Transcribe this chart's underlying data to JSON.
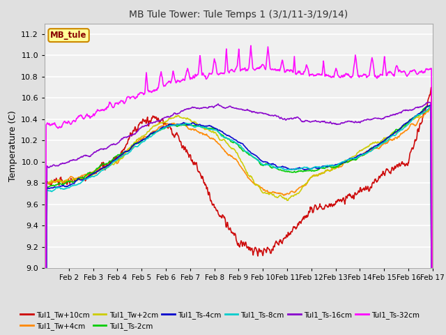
{
  "title": "MB Tule Tower: Tule Temps 1 (3/1/11-3/19/14)",
  "ylabel": "Temperature (C)",
  "ylim": [
    9.0,
    11.3
  ],
  "yticks": [
    9.0,
    9.2,
    9.4,
    9.6,
    9.8,
    10.0,
    10.2,
    10.4,
    10.6,
    10.8,
    11.0,
    11.2
  ],
  "x_labels": [
    "Feb 2",
    "Feb 3",
    "Feb 4",
    "Feb 5",
    "Feb 6",
    "Feb 7",
    "Feb 8",
    "Feb 9",
    "Feb 10",
    "Feb 11",
    "Feb 12",
    "Feb 13",
    "Feb 14",
    "Feb 15",
    "Feb 16",
    "Feb 17"
  ],
  "legend_box_text": "MB_tule",
  "legend_box_text_color": "#880000",
  "legend_box_face": "#ffff99",
  "legend_box_edge": "#cc8800",
  "fig_bg": "#e0e0e0",
  "plot_bg": "#f0f0f0",
  "grid_color": "#ffffff",
  "series": [
    {
      "label": "Tul1_Tw+10cm",
      "color": "#cc0000",
      "lw": 1.2
    },
    {
      "label": "Tul1_Tw+4cm",
      "color": "#ff8800",
      "lw": 1.2
    },
    {
      "label": "Tul1_Tw+2cm",
      "color": "#cccc00",
      "lw": 1.2
    },
    {
      "label": "Tul1_Ts-2cm",
      "color": "#00cc00",
      "lw": 1.2
    },
    {
      "label": "Tul1_Ts-4cm",
      "color": "#0000cc",
      "lw": 1.2
    },
    {
      "label": "Tul1_Ts-8cm",
      "color": "#00cccc",
      "lw": 1.2
    },
    {
      "label": "Tul1_Ts-16cm",
      "color": "#8800cc",
      "lw": 1.2
    },
    {
      "label": "Tul1_Ts-32cm",
      "color": "#ff00ff",
      "lw": 1.2
    }
  ]
}
